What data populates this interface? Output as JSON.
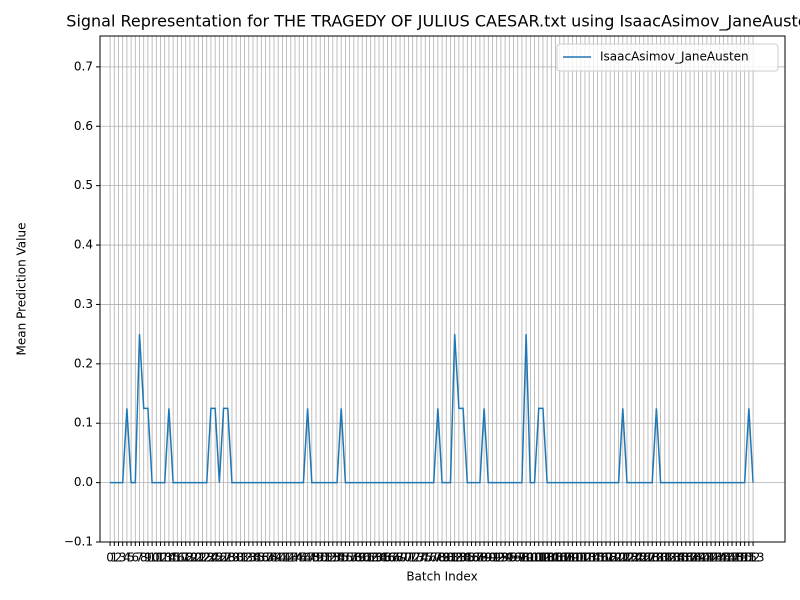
{
  "chart_data": {
    "type": "line",
    "title": "Signal Representation for THE TRAGEDY OF JULIUS CAESAR.txt using IsaacAsimov_JaneAusten",
    "x_label": "Batch Index",
    "y_label": "Mean Prediction Value",
    "x": [
      0,
      1,
      2,
      3,
      4,
      5,
      6,
      7,
      8,
      9,
      10,
      11,
      12,
      13,
      14,
      15,
      16,
      17,
      18,
      19,
      20,
      21,
      22,
      23,
      24,
      25,
      26,
      27,
      28,
      29,
      30,
      31,
      32,
      33,
      34,
      35,
      36,
      37,
      38,
      39,
      40,
      41,
      42,
      43,
      44,
      45,
      46,
      47,
      48,
      49,
      50,
      51,
      52,
      53,
      54,
      55,
      56,
      57,
      58,
      59,
      60,
      61,
      62,
      63,
      64,
      65,
      66,
      67,
      68,
      69,
      70,
      71,
      72,
      73,
      74,
      75,
      76,
      77,
      78,
      79,
      80,
      81,
      82,
      83,
      84,
      85,
      86,
      87,
      88,
      89,
      90,
      91,
      92,
      93,
      94,
      95,
      96,
      97,
      98,
      99,
      100,
      101,
      102,
      103,
      104,
      105,
      106,
      107,
      108,
      109,
      110,
      111,
      112,
      113,
      114,
      115,
      116,
      117,
      118,
      119,
      120,
      121,
      122,
      123,
      124,
      125,
      126,
      127,
      128,
      129,
      130,
      131,
      132,
      133,
      134,
      135,
      136,
      137,
      138,
      139,
      140,
      141,
      142,
      143,
      144,
      145,
      146,
      147,
      148,
      149,
      150,
      151,
      152,
      153
    ],
    "series": [
      {
        "name": "IsaacAsimov_JaneAusten",
        "color": "#1f77b4",
        "values": [
          0,
          0,
          0,
          0,
          0.125,
          0,
          0,
          0.25,
          0.125,
          0.125,
          0,
          0,
          0,
          0,
          0.125,
          0,
          0,
          0,
          0,
          0,
          0,
          0,
          0,
          0,
          0.125,
          0.125,
          0,
          0.125,
          0.125,
          0,
          0,
          0,
          0,
          0,
          0,
          0,
          0,
          0,
          0,
          0,
          0,
          0,
          0,
          0,
          0,
          0,
          0,
          0.125,
          0,
          0,
          0,
          0,
          0,
          0,
          0,
          0.125,
          0,
          0,
          0,
          0,
          0,
          0,
          0,
          0,
          0,
          0,
          0,
          0,
          0,
          0,
          0,
          0,
          0,
          0,
          0,
          0,
          0,
          0,
          0.125,
          0,
          0,
          0,
          0.25,
          0.125,
          0.125,
          0,
          0,
          0,
          0,
          0.125,
          0,
          0,
          0,
          0,
          0,
          0,
          0,
          0,
          0,
          0.25,
          0,
          0,
          0.125,
          0.125,
          0,
          0,
          0,
          0,
          0,
          0,
          0,
          0,
          0,
          0,
          0,
          0,
          0,
          0,
          0,
          0,
          0,
          0,
          0.125,
          0,
          0,
          0,
          0,
          0,
          0,
          0,
          0.125,
          0,
          0,
          0,
          0,
          0,
          0,
          0,
          0,
          0,
          0,
          0,
          0,
          0,
          0,
          0,
          0,
          0,
          0,
          0,
          0,
          0,
          0.125,
          0
        ]
      }
    ],
    "xlim": [
      -2.4,
      160.6
    ],
    "xticks": [
      0,
      1,
      2,
      3,
      4,
      5,
      6,
      7,
      8,
      9,
      10,
      11,
      12,
      13,
      14,
      15,
      16,
      17,
      18,
      19,
      20,
      21,
      22,
      23,
      24,
      25,
      26,
      27,
      28,
      29,
      30,
      31,
      32,
      33,
      34,
      35,
      36,
      37,
      38,
      39,
      40,
      41,
      42,
      43,
      44,
      45,
      46,
      47,
      48,
      49,
      50,
      51,
      52,
      53,
      54,
      55,
      56,
      57,
      58,
      59,
      60,
      61,
      62,
      63,
      64,
      65,
      66,
      67,
      68,
      69,
      70,
      71,
      72,
      73,
      74,
      75,
      76,
      77,
      78,
      79,
      80,
      81,
      82,
      83,
      84,
      85,
      86,
      87,
      88,
      89,
      90,
      91,
      92,
      93,
      94,
      95,
      96,
      97,
      98,
      99,
      100,
      101,
      102,
      103,
      104,
      105,
      106,
      107,
      108,
      109,
      110,
      111,
      112,
      113,
      114,
      115,
      116,
      117,
      118,
      119,
      120,
      121,
      122,
      123,
      124,
      125,
      126,
      127,
      128,
      129,
      130,
      131,
      132,
      133,
      134,
      135,
      136,
      137,
      138,
      139,
      140,
      141,
      142,
      143,
      144,
      145,
      146,
      147,
      148,
      149,
      150,
      151,
      152,
      153
    ],
    "ylim": [
      -0.1,
      0.752
    ],
    "yticks": [
      {
        "value": -0.1,
        "label": "−0.1"
      },
      {
        "value": 0,
        "label": "0.0"
      },
      {
        "value": 0.1,
        "label": "0.1"
      },
      {
        "value": 0.2,
        "label": "0.2"
      },
      {
        "value": 0.3,
        "label": "0.3"
      },
      {
        "value": 0.4,
        "label": "0.4"
      },
      {
        "value": 0.5,
        "label": "0.5"
      },
      {
        "value": 0.6,
        "label": "0.6"
      },
      {
        "value": 0.7,
        "label": "0.7"
      }
    ],
    "grid": true,
    "legend": "upper-right"
  }
}
